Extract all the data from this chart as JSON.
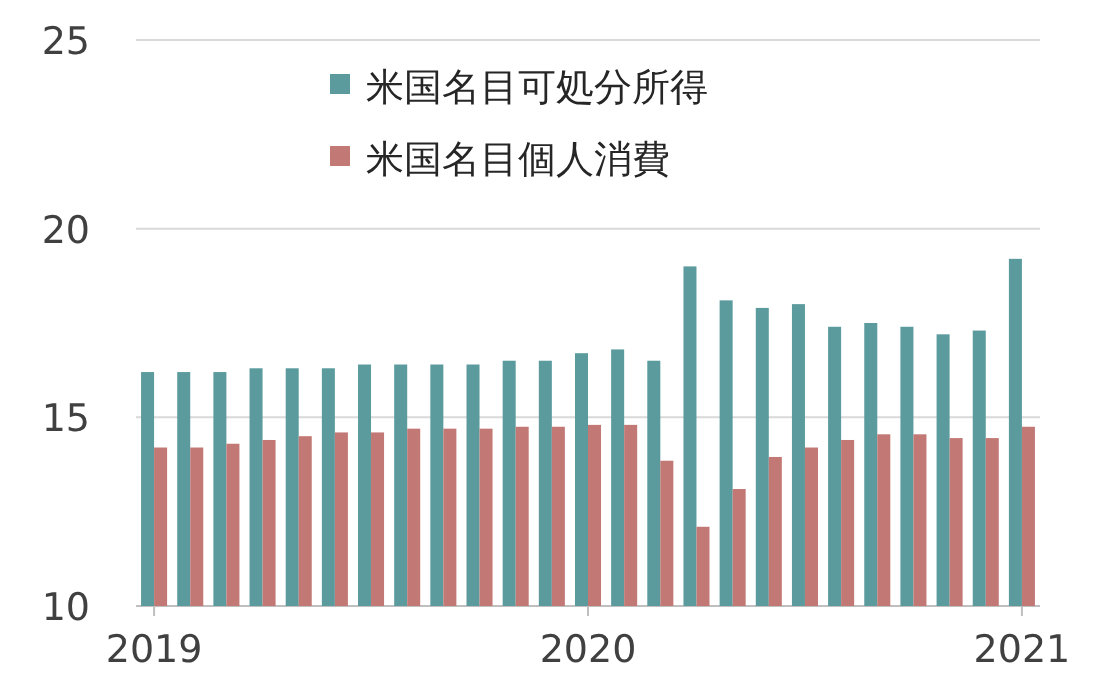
{
  "chart_data": {
    "type": "bar",
    "categories": [
      "2019",
      null,
      null,
      null,
      null,
      null,
      null,
      null,
      null,
      null,
      null,
      null,
      "2020",
      null,
      null,
      null,
      null,
      null,
      null,
      null,
      null,
      null,
      null,
      null,
      "2021"
    ],
    "series": [
      {
        "name": "米国名目可処分所得",
        "color": "#5b9b9e",
        "values": [
          16.2,
          16.2,
          16.2,
          16.3,
          16.3,
          16.3,
          16.4,
          16.4,
          16.4,
          16.4,
          16.5,
          16.5,
          16.7,
          16.8,
          16.5,
          19.0,
          18.1,
          17.9,
          18.0,
          17.4,
          17.5,
          17.4,
          17.2,
          17.3,
          19.2
        ]
      },
      {
        "name": "米国名目個人消費",
        "color": "#c27874",
        "values": [
          14.2,
          14.2,
          14.3,
          14.4,
          14.5,
          14.6,
          14.6,
          14.7,
          14.7,
          14.7,
          14.75,
          14.75,
          14.8,
          14.8,
          13.85,
          12.1,
          13.1,
          13.95,
          14.2,
          14.4,
          14.55,
          14.55,
          14.45,
          14.45,
          14.75
        ]
      }
    ],
    "ylim": [
      10,
      25
    ],
    "yticks": [
      10,
      15,
      20,
      25
    ],
    "grid": "y",
    "legend": "top"
  }
}
